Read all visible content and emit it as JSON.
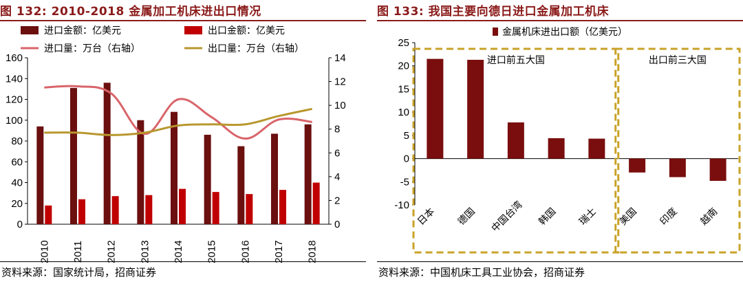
{
  "left_figure": {
    "title": "图 132:  2010-2018 金属加工机床进出口情况",
    "source": "资料来源：国家统计局，招商证券"
  },
  "right_figure": {
    "title": "图 133:  我国主要向德日进口金属加工机床",
    "source": "资料来源：中国机床工具工业协会，招商证券"
  },
  "chart_data": [
    {
      "type": "bar+line",
      "title": "2010-2018 金属加工机床进出口情况",
      "categories": [
        "2010",
        "2011",
        "2012",
        "2013",
        "2014",
        "2015",
        "2016",
        "2017",
        "2018"
      ],
      "series": [
        {
          "name": "进口金额：亿美元",
          "kind": "bar",
          "axis": "left",
          "color": "#6b0f0f",
          "values": [
            94,
            131,
            136,
            100,
            108,
            86,
            75,
            87,
            96
          ]
        },
        {
          "name": "出口金额：亿美元",
          "kind": "bar",
          "axis": "left",
          "color": "#c00000",
          "values": [
            18,
            24,
            27,
            28,
            34,
            31,
            29,
            33,
            40
          ]
        },
        {
          "name": "进口量：万台（右轴）",
          "kind": "line",
          "axis": "right",
          "color": "#d9646a",
          "values": [
            11.5,
            11.6,
            11.0,
            7.6,
            10.5,
            9.0,
            7.2,
            8.8,
            8.6
          ]
        },
        {
          "name": "出口量：万台（右轴）",
          "kind": "line",
          "axis": "right",
          "color": "#b8972e",
          "values": [
            7.7,
            7.7,
            7.5,
            7.7,
            8.3,
            8.4,
            8.4,
            9.1,
            9.7
          ]
        }
      ],
      "ylim_left": [
        0,
        160
      ],
      "yticks_left": [
        0,
        20,
        40,
        60,
        80,
        100,
        120,
        140,
        160
      ],
      "ylim_right": [
        0,
        14
      ],
      "yticks_right": [
        0,
        2,
        4,
        6,
        8,
        10,
        12,
        14
      ]
    },
    {
      "type": "bar",
      "title": "我国主要向德日进口金属加工机床",
      "legend": "金属机床进出口额（亿美元）",
      "color": "#7a0e0e",
      "categories": [
        "日本",
        "德国",
        "中国台湾",
        "韩国",
        "瑞士",
        "美国",
        "印度",
        "越南"
      ],
      "values": [
        21.5,
        21.3,
        7.8,
        4.4,
        4.3,
        -3.0,
        -4.0,
        -4.8
      ],
      "ylim": [
        -10,
        25
      ],
      "yticks": [
        -10,
        -5,
        0,
        5,
        10,
        15,
        20,
        25
      ],
      "annotations": [
        {
          "label": "进口前五大国",
          "group": [
            "日本",
            "德国",
            "中国台湾",
            "韩国",
            "瑞士"
          ]
        },
        {
          "label": "出口前三大国",
          "group": [
            "美国",
            "印度",
            "越南"
          ]
        }
      ],
      "annotation_color": "#c9a227"
    }
  ]
}
